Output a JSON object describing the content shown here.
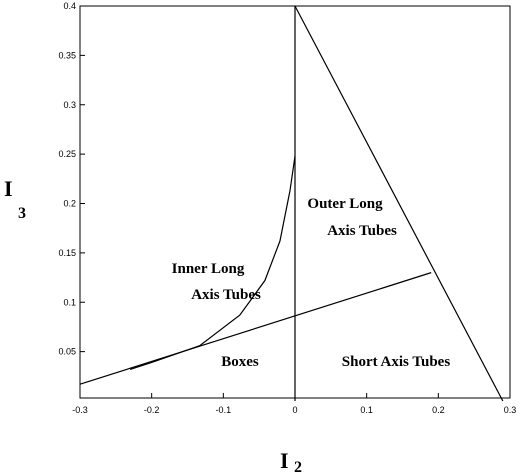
{
  "chart_data": {
    "type": "line",
    "xlabel": "I",
    "xlabel_subscript": "2",
    "ylabel": "I",
    "ylabel_subscript": "3",
    "xlim": [
      -0.3,
      0.3
    ],
    "ylim": [
      0,
      0.4
    ],
    "xticks": [
      -0.3,
      -0.2,
      -0.1,
      0,
      0.1,
      0.2,
      0.3
    ],
    "yticks": [
      0.05,
      0.1,
      0.15,
      0.2,
      0.25,
      0.3,
      0.35,
      0.4
    ],
    "series": [
      {
        "color": "#000000",
        "x": [
          0,
          0
        ],
        "values": [
          0,
          0.4
        ]
      },
      {
        "color": "#000000",
        "x": [
          0,
          0.29
        ],
        "values": [
          0.4,
          0
        ]
      },
      {
        "color": "#000000",
        "x": [
          -0.3,
          0.19
        ],
        "values": [
          0.017,
          0.13
        ]
      },
      {
        "color": "#000000",
        "x": [
          -0.23,
          -0.2,
          -0.133,
          -0.077,
          -0.042,
          -0.021,
          -0.007,
          0
        ],
        "values": [
          0.032,
          0.039,
          0.056,
          0.087,
          0.122,
          0.162,
          0.213,
          0.248
        ]
      }
    ],
    "annotations": [
      "Outer Long",
      "Axis Tubes",
      "Inner Long",
      "Axis Tubes",
      "Boxes",
      "Short Axis Tubes"
    ]
  }
}
